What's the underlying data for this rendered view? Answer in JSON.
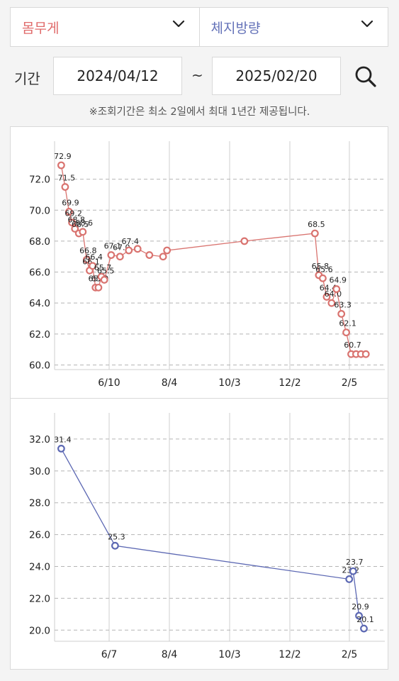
{
  "selects": {
    "metric_a": "몸무게",
    "metric_b": "체지방량"
  },
  "period": {
    "label": "기간",
    "start": "2024/04/12",
    "separator": "~",
    "end": "2025/02/20"
  },
  "notice": "※조회기간은 최소 2일에서 최대 1년간 제공됩니다.",
  "colors": {
    "weight_line": "#d9736f",
    "fat_line": "#5c68b3"
  },
  "chart_data": [
    {
      "type": "line",
      "series": [
        {
          "name": "",
          "x": [
            "2024-04-13",
            "2024-04-17",
            "2024-04-21",
            "2024-04-24",
            "2024-04-27",
            "2024-05-01",
            "2024-05-05",
            "2024-05-09",
            "2024-05-12",
            "2024-05-15",
            "2024-05-18",
            "2024-05-21",
            "2024-05-24",
            "2024-05-27",
            "2024-06-03",
            "2024-06-12",
            "2024-06-21",
            "2024-06-30",
            "2024-07-12",
            "2024-07-26",
            "2024-07-30",
            "2024-10-17",
            "2024-12-28",
            "2025-01-01",
            "2025-01-05",
            "2025-01-09",
            "2025-01-14",
            "2025-01-19",
            "2025-01-24",
            "2025-01-29",
            "2025-02-03",
            "2025-02-08",
            "2025-02-13",
            "2025-02-18"
          ],
          "values": [
            72.9,
            71.5,
            69.9,
            69.2,
            68.8,
            68.5,
            68.6,
            66.8,
            66.1,
            66.4,
            65.0,
            65.0,
            65.7,
            65.5,
            67.1,
            67.0,
            67.4,
            67.5,
            67.1,
            67.0,
            67.4,
            68.0,
            68.5,
            65.8,
            65.6,
            64.4,
            64.0,
            64.9,
            63.3,
            62.1,
            60.7,
            60.7,
            60.7,
            60.7
          ],
          "labels": [
            "72.9",
            "71.5",
            "69.9",
            "69.2",
            "68.8",
            "68.5",
            "68.6",
            "66.8",
            "66.1",
            "66.4",
            "65.0",
            "65.0",
            "65.7",
            "65.5",
            "67.1",
            "67.0",
            "67.4",
            "",
            "",
            "",
            "",
            "",
            "68.5",
            "65.8",
            "65.6",
            "64.4",
            "64.0",
            "64.9",
            "63.3",
            "62.1",
            "60.7",
            "",
            "",
            ""
          ]
        }
      ],
      "xticks": [
        "6/10",
        "8/4",
        "10/3",
        "12/2",
        "2/5"
      ],
      "yticks": [
        "60.0",
        "62.0",
        "64.0",
        "66.0",
        "68.0",
        "70.0",
        "72.0"
      ],
      "ylim": [
        59.7,
        74.0
      ],
      "grid": true
    },
    {
      "type": "line",
      "series": [
        {
          "name": "",
          "x": [
            "2024-04-13",
            "2024-06-07",
            "2025-02-01",
            "2025-02-05",
            "2025-02-11",
            "2025-02-16"
          ],
          "values": [
            31.4,
            25.3,
            23.2,
            23.7,
            20.9,
            20.1
          ],
          "labels": [
            "31.4",
            "25.3",
            "23.2",
            "23.7",
            "20.9",
            "20.1"
          ]
        }
      ],
      "xticks": [
        "6/7",
        "8/4",
        "10/3",
        "12/2",
        "2/5"
      ],
      "yticks": [
        "20.0",
        "22.0",
        "24.0",
        "26.0",
        "28.0",
        "30.0",
        "32.0"
      ],
      "ylim": [
        19.3,
        33.2
      ],
      "grid": true
    }
  ]
}
